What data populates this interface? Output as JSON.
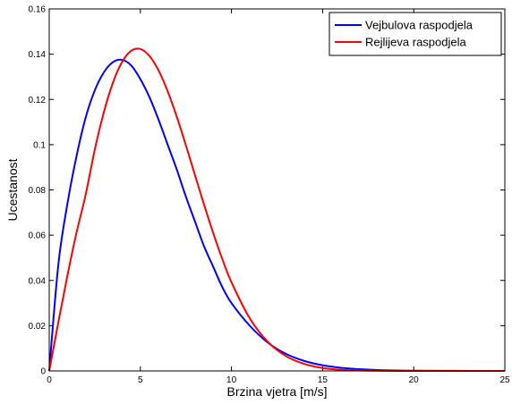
{
  "chart_data": {
    "type": "line",
    "title": "",
    "xlabel": "Brzina vjetra [m/s]",
    "ylabel": "Ucestanost",
    "xlim": [
      0,
      25
    ],
    "ylim": [
      0,
      0.16
    ],
    "x_ticks": [
      0,
      5,
      10,
      15,
      20,
      25
    ],
    "x_tick_labels": [
      "0",
      "5",
      "10",
      "15",
      "20",
      "25"
    ],
    "y_ticks": [
      0,
      0.02,
      0.04,
      0.06,
      0.08,
      0.1,
      0.12,
      0.14,
      0.16
    ],
    "y_tick_labels": [
      "0",
      "0.02",
      "0.04",
      "0.06",
      "0.08",
      "0.1",
      "0.12",
      "0.14",
      "0.16"
    ],
    "grid": false,
    "legend_position": "top-right",
    "series": [
      {
        "name": "Vejbulova raspodjela",
        "color": "#0000ff",
        "x": [
          0,
          0.5,
          1,
          1.5,
          2,
          2.5,
          3,
          3.5,
          4,
          4.5,
          5,
          5.5,
          6,
          6.5,
          7,
          7.5,
          8,
          8.5,
          9,
          9.5,
          10,
          11,
          12,
          13,
          14,
          15,
          16,
          17,
          18,
          19,
          20,
          22,
          25
        ],
        "y": [
          0,
          0.047,
          0.074,
          0.095,
          0.112,
          0.124,
          0.132,
          0.1365,
          0.1375,
          0.135,
          0.129,
          0.121,
          0.111,
          0.1,
          0.089,
          0.077,
          0.066,
          0.055,
          0.046,
          0.037,
          0.03,
          0.02,
          0.0125,
          0.0075,
          0.0044,
          0.0025,
          0.0014,
          0.0008,
          0.0004,
          0.0002,
          0.0001,
          3e-05,
          0
        ]
      },
      {
        "name": "Rejlijeva raspodjela",
        "color": "#ff0000",
        "x": [
          0,
          0.5,
          1,
          1.5,
          2,
          2.5,
          3,
          3.5,
          4,
          4.5,
          5,
          5.5,
          6,
          6.5,
          7,
          7.5,
          8,
          8.5,
          9,
          9.5,
          10,
          11,
          12,
          13,
          14,
          15,
          16,
          17,
          18,
          19,
          20,
          22,
          25
        ],
        "y": [
          0,
          0.0215,
          0.0422,
          0.0612,
          0.0779,
          0.0978,
          0.1144,
          0.1275,
          0.1366,
          0.1415,
          0.1423,
          0.1392,
          0.1328,
          0.1236,
          0.1123,
          0.0997,
          0.0865,
          0.0734,
          0.0609,
          0.0494,
          0.0392,
          0.0233,
          0.0128,
          0.0065,
          0.0031,
          0.0013,
          0.0005,
          0.0002,
          0.0001,
          2e-05,
          1e-05,
          0,
          0
        ]
      }
    ]
  }
}
